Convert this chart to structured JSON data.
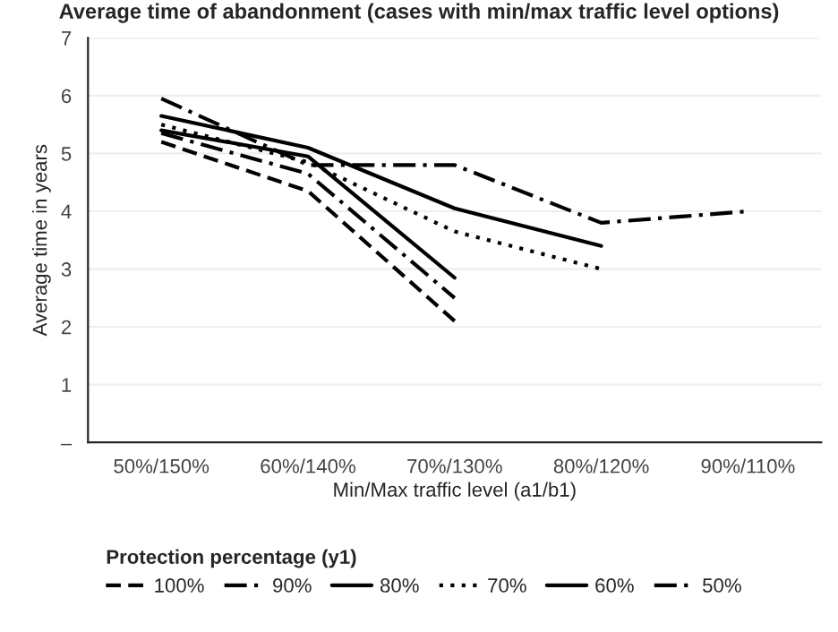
{
  "chart_data": {
    "type": "line",
    "title": "Average time of abandonment (cases with min/max traffic level options)",
    "xlabel": "Min/Max traffic level (a1/b1)",
    "ylabel": "Average time in years",
    "legend_title": "Protection percentage (y1)",
    "categories": [
      "50%/150%",
      "60%/140%",
      "70%/130%",
      "80%/120%",
      "90%/110%"
    ],
    "series": [
      {
        "name": "100%",
        "color": "#000000",
        "line_style": "dashed",
        "values": [
          5.2,
          4.35,
          2.1,
          null,
          null
        ]
      },
      {
        "name": "90%",
        "color": "#000000",
        "line_style": "dashdot",
        "values": [
          5.35,
          4.65,
          2.5,
          null,
          null
        ]
      },
      {
        "name": "80%",
        "color": "#000000",
        "line_style": "solid",
        "values": [
          5.4,
          4.95,
          2.85,
          null,
          null
        ]
      },
      {
        "name": "70%",
        "color": "#000000",
        "line_style": "dotted",
        "values": [
          5.5,
          4.85,
          3.65,
          3.0,
          null
        ]
      },
      {
        "name": "60%",
        "color": "#000000",
        "line_style": "solid",
        "values": [
          5.65,
          5.1,
          4.05,
          3.4,
          null
        ]
      },
      {
        "name": "50%",
        "color": "#000000",
        "line_style": "dashdot",
        "values": [
          5.95,
          4.8,
          4.8,
          3.8,
          4.0
        ]
      }
    ],
    "ylim": [
      0,
      7
    ],
    "yticks": [
      {
        "value": 0,
        "label": "–"
      },
      1,
      2,
      3,
      4,
      5,
      6,
      7
    ],
    "grid": "y",
    "legend": "bottom",
    "marker": "none"
  }
}
